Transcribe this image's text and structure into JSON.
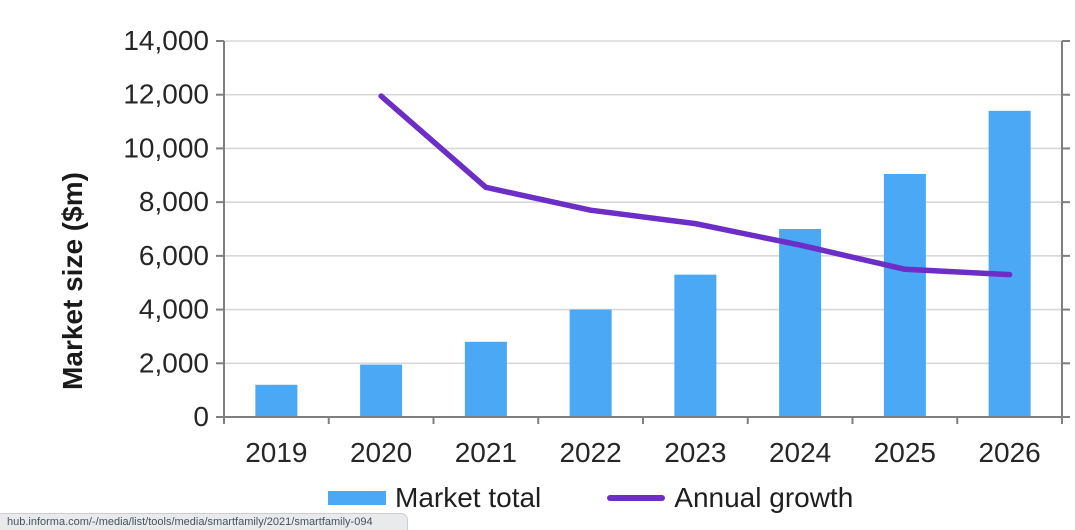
{
  "chart_data": {
    "type": "bar",
    "combo": "bar+line",
    "title": "",
    "ylabel": "Market size ($m)",
    "xlabel": "",
    "categories": [
      "2019",
      "2020",
      "2021",
      "2022",
      "2023",
      "2024",
      "2025",
      "2026"
    ],
    "y_axis": {
      "min": 0,
      "max": 14000,
      "tick_step": 2000,
      "tick_values": [
        0,
        2000,
        4000,
        6000,
        8000,
        10000,
        12000,
        14000
      ],
      "tick_labels": [
        "0",
        "2,000",
        "4,000",
        "6,000",
        "8,000",
        "10,000",
        "12,000",
        "14,000"
      ]
    },
    "grid": true,
    "legend_position": "bottom",
    "series": [
      {
        "name": "Market total",
        "type": "bar",
        "color": "#4AA8F5",
        "values": [
          1200,
          1950,
          2800,
          4000,
          5300,
          7000,
          9050,
          11400
        ]
      },
      {
        "name": "Annual growth",
        "type": "line",
        "color": "#6C2EC6",
        "values": [
          null,
          11950,
          8550,
          7700,
          7200,
          6400,
          5500,
          5300
        ]
      }
    ],
    "colors": {
      "grid": "#D8D8D8",
      "axis": "#7F7F7F",
      "text": "#262626"
    }
  },
  "status_bar": {
    "url_text": "hub.informa.com/-/media/list/tools/media/smartfamily/2021/smartfamily-094"
  }
}
